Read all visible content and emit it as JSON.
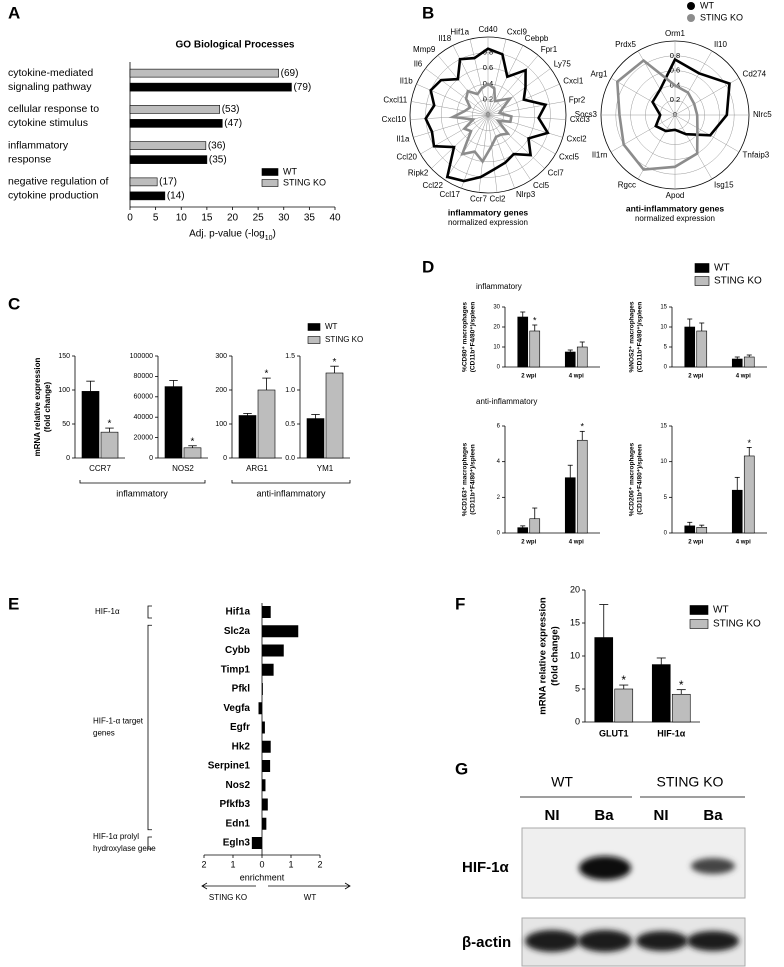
{
  "panel_labels": [
    "A",
    "B",
    "C",
    "D",
    "E",
    "F",
    "G"
  ],
  "panel_c": {
    "y_label": [
      "mRNA relative expression",
      "(fold change)"
    ],
    "groups": [
      "inflammatory",
      "anti-inflammatory"
    ]
  },
  "panel_d": {
    "sections": [
      "inflammatory",
      "anti-inflammatory"
    ]
  },
  "blot": {
    "groups": [
      "WT",
      "STING KO"
    ],
    "lanes": [
      "NI",
      "Ba",
      "NI",
      "Ba"
    ],
    "rows": [
      "HIF-1α",
      "β-actin"
    ]
  },
  "chart_data": [
    {
      "type": "hbar",
      "title": "GO Biological Processes",
      "categories": [
        [
          "cytokine-mediated",
          "signaling pathway"
        ],
        [
          "cellular response to",
          "cytokine stimulus"
        ],
        [
          "inflammatory",
          "response"
        ],
        [
          "negative regulation of",
          "cytokine production"
        ]
      ],
      "series": [
        {
          "name": "WT",
          "color": "#000000",
          "values": [
            31.5,
            18,
            15,
            6.8
          ],
          "counts": [
            "(79)",
            "(47)",
            "(35)",
            "(14)"
          ]
        },
        {
          "name": "STING KO",
          "color": "#bdbdbd",
          "values": [
            29,
            17.5,
            14.8,
            5.3
          ],
          "counts": [
            "(69)",
            "(53)",
            "(36)",
            "(17)"
          ]
        }
      ],
      "xlim": [
        0,
        40
      ],
      "xticks": [
        0,
        5,
        10,
        15,
        20,
        25,
        30,
        35,
        40
      ],
      "x_label": [
        "Adj. p-value (-log",
        "10",
        ")"
      ],
      "legend": "lower right"
    },
    {
      "type": "radar",
      "title": "inflammatory genes",
      "subtitle": "normalized expression",
      "categories": [
        "Cd40",
        "Cxcl9",
        "Cebpb",
        "Fpr1",
        "Ly75",
        "Cxcl1",
        "Fpr2",
        "Cxcl3",
        "Cxcl2",
        "Cxcl5",
        "Ccl7",
        "Ccl5",
        "Nlrp3",
        "Ccl2",
        "Ccr7",
        "Ccl17",
        "Ccl22",
        "Ripk2",
        "Ccl20",
        "Il1a",
        "Cxcl10",
        "Cxcl11",
        "Il1b",
        "Il6",
        "Mmp9",
        "Il18",
        "Hif1a"
      ],
      "series": [
        {
          "name": "WT",
          "color": "#000000",
          "values": [
            0.85,
            0.8,
            0.55,
            0.75,
            0.6,
            0.5,
            0.75,
            0.65,
            0.8,
            0.6,
            0.75,
            0.6,
            0.65,
            0.7,
            0.8,
            0.9,
            0.95,
            0.6,
            0.8,
            0.75,
            0.8,
            0.7,
            0.8,
            0.75,
            0.6,
            0.8,
            0.75
          ]
        },
        {
          "name": "STING KO",
          "color": "#8c8c8c",
          "values": [
            0.4,
            0.35,
            0.2,
            0.25,
            0.35,
            0.2,
            0.15,
            0.3,
            0.3,
            0.15,
            0.35,
            0.3,
            0.3,
            0.4,
            0.6,
            0.5,
            0.6,
            0.3,
            0.35,
            0.2,
            0.45,
            0.3,
            0.25,
            0.35,
            0.4,
            0.3,
            0.35
          ]
        }
      ],
      "rlim": [
        0,
        1
      ],
      "rticks": [
        0,
        0.2,
        0.4,
        0.6,
        0.8
      ],
      "legend": "upper right"
    },
    {
      "type": "radar",
      "title": "anti-inflammatory genes",
      "subtitle": "normalized expression",
      "categories": [
        "Orm1",
        "Il10",
        "Cd274",
        "Nlrc5",
        "Tnfaip3",
        "Isg15",
        "Apod",
        "Rgcc",
        "Il1rn",
        "Socs3",
        "Arg1",
        "Prdx5"
      ],
      "series": [
        {
          "name": "WT",
          "color": "#000000",
          "values": [
            0.75,
            0.65,
            0.85,
            0.7,
            0.55,
            0.3,
            0.2,
            0.25,
            0.3,
            0.2,
            0.35,
            0.4
          ]
        },
        {
          "name": "STING KO",
          "color": "#8c8c8c",
          "values": [
            0.4,
            0.35,
            0.3,
            0.3,
            0.35,
            0.6,
            0.7,
            0.85,
            0.8,
            0.75,
            0.9,
            0.85
          ]
        }
      ],
      "rlim": [
        0,
        1
      ],
      "rticks": [
        0,
        0.2,
        0.4,
        0.6,
        0.8
      ]
    },
    {
      "type": "bar",
      "categories": [
        "CCR7"
      ],
      "series": [
        {
          "name": "WT",
          "color": "#000000",
          "values": [
            98
          ],
          "errors": [
            15
          ]
        },
        {
          "name": "STING KO",
          "color": "#bdbdbd",
          "values": [
            38
          ],
          "errors": [
            6
          ],
          "significance": [
            "*"
          ]
        }
      ],
      "ylim": [
        0,
        150
      ],
      "yticks": [
        0,
        50,
        100,
        150
      ]
    },
    {
      "type": "bar",
      "categories": [
        "NOS2"
      ],
      "series": [
        {
          "name": "WT",
          "color": "#000000",
          "values": [
            70000
          ],
          "errors": [
            6000
          ]
        },
        {
          "name": "STING KO",
          "color": "#bdbdbd",
          "values": [
            10000
          ],
          "errors": [
            2000
          ],
          "significance": [
            "*"
          ]
        }
      ],
      "ylim": [
        0,
        100000
      ],
      "yticks": [
        0,
        20000,
        40000,
        60000,
        80000,
        100000
      ]
    },
    {
      "type": "bar",
      "categories": [
        "ARG1"
      ],
      "series": [
        {
          "name": "WT",
          "color": "#000000",
          "values": [
            125
          ],
          "errors": [
            6
          ]
        },
        {
          "name": "STING KO",
          "color": "#bdbdbd",
          "values": [
            200
          ],
          "errors": [
            35
          ],
          "significance": [
            "*"
          ]
        }
      ],
      "ylim": [
        0,
        300
      ],
      "yticks": [
        0,
        100,
        200,
        300
      ]
    },
    {
      "type": "bar",
      "categories": [
        "YM1"
      ],
      "series": [
        {
          "name": "WT",
          "color": "#000000",
          "values": [
            0.58
          ],
          "errors": [
            0.06
          ]
        },
        {
          "name": "STING KO",
          "color": "#bdbdbd",
          "values": [
            1.25
          ],
          "errors": [
            0.1
          ],
          "significance": [
            "*"
          ]
        }
      ],
      "ylim": [
        0,
        1.5
      ],
      "yticks": [
        {
          "value": 0,
          "label": "0.0"
        },
        0.5,
        {
          "value": 1,
          "label": "1.0"
        },
        1.5
      ],
      "legend": "upper right"
    },
    {
      "type": "bar",
      "y_label": [
        "%CD80⁺ macrophages",
        "(CD11b⁺F4/80⁺)/spleen"
      ],
      "categories": [
        "2 wpi",
        "4 wpi"
      ],
      "series": [
        {
          "name": "WT",
          "color": "#000000",
          "values": [
            25,
            7.5
          ],
          "errors": [
            2.5,
            1
          ]
        },
        {
          "name": "STING KO",
          "color": "#bdbdbd",
          "values": [
            18,
            10
          ],
          "errors": [
            3,
            2.5
          ],
          "significance": [
            "*",
            null
          ]
        }
      ],
      "ylim": [
        0,
        30
      ],
      "yticks": [
        0,
        10,
        20,
        30
      ]
    },
    {
      "type": "bar",
      "y_label": [
        "%NOS2⁺ macrophages",
        "(CD11b⁺F4/80⁺)/spleen"
      ],
      "categories": [
        "2 wpi",
        "4 wpi"
      ],
      "series": [
        {
          "name": "WT",
          "color": "#000000",
          "values": [
            10,
            2
          ],
          "errors": [
            2,
            0.5
          ]
        },
        {
          "name": "STING KO",
          "color": "#bdbdbd",
          "values": [
            9,
            2.5
          ],
          "errors": [
            2,
            0.5
          ]
        }
      ],
      "ylim": [
        0,
        15
      ],
      "yticks": [
        0,
        5,
        10,
        15
      ],
      "legend": "upper right"
    },
    {
      "type": "bar",
      "y_label": [
        "%CD163⁺ macrophages",
        "(CD11b⁺F4/80⁺)/spleen"
      ],
      "categories": [
        "2 wpi",
        "4 wpi"
      ],
      "series": [
        {
          "name": "WT",
          "color": "#000000",
          "values": [
            0.3,
            3.1
          ],
          "errors": [
            0.1,
            0.7
          ]
        },
        {
          "name": "STING KO",
          "color": "#bdbdbd",
          "values": [
            0.8,
            5.2
          ],
          "errors": [
            0.6,
            0.5
          ],
          "significance": [
            null,
            "*"
          ]
        }
      ],
      "ylim": [
        0,
        6
      ],
      "yticks": [
        0,
        2,
        4,
        6
      ]
    },
    {
      "type": "bar",
      "y_label": [
        "%CD206⁺ macrophages",
        "(CD11b⁺F4/80⁺)/spleen"
      ],
      "categories": [
        "2 wpi",
        "4 wpi"
      ],
      "series": [
        {
          "name": "WT",
          "color": "#000000",
          "values": [
            1,
            6
          ],
          "errors": [
            0.5,
            1.8
          ]
        },
        {
          "name": "STING KO",
          "color": "#bdbdbd",
          "values": [
            0.8,
            10.8
          ],
          "errors": [
            0.3,
            1.2
          ],
          "significance": [
            null,
            "*"
          ]
        }
      ],
      "ylim": [
        0,
        15
      ],
      "yticks": [
        0,
        5,
        10,
        15
      ]
    },
    {
      "type": "diverging",
      "categories": [
        "Hif1a",
        "Slc2a",
        "Cybb",
        "Timp1",
        "Pfkl",
        "Vegfa",
        "Egfr",
        "Hk2",
        "Serpine1",
        "Nos2",
        "Pfkfb3",
        "Edn1",
        "Egln3"
      ],
      "values": [
        0.3,
        1.25,
        0.75,
        0.4,
        0.03,
        -0.12,
        0.1,
        0.3,
        0.28,
        0.12,
        0.2,
        0.15,
        -0.35
      ],
      "color": "#000000",
      "groups": [
        [
          "HIF-1α"
        ],
        [
          "HIF-1-α target",
          "genes"
        ],
        [
          "HIF-1α prolyl",
          "hydroxylase gene"
        ]
      ],
      "xlim": [
        -2,
        2
      ],
      "xticks": [
        {
          "value": -2,
          "label": "2"
        },
        {
          "value": -1,
          "label": "1"
        },
        0,
        1,
        2
      ],
      "x_label": "enrichment",
      "direction_labels": [
        "STING KO",
        "WT"
      ]
    },
    {
      "type": "bar",
      "y_label": [
        "mRNA relative expression",
        "(fold change)"
      ],
      "categories": [
        "GLUT1",
        "HIF-1α"
      ],
      "series": [
        {
          "name": "WT",
          "color": "#000000",
          "values": [
            12.8,
            8.7
          ],
          "errors": [
            5,
            1
          ]
        },
        {
          "name": "STING KO",
          "color": "#bdbdbd",
          "values": [
            5,
            4.2
          ],
          "errors": [
            0.6,
            0.7
          ],
          "significance": [
            "*",
            "*"
          ]
        }
      ],
      "ylim": [
        0,
        20
      ],
      "yticks": [
        0,
        5,
        10,
        15,
        20
      ],
      "legend": "upper right"
    }
  ]
}
